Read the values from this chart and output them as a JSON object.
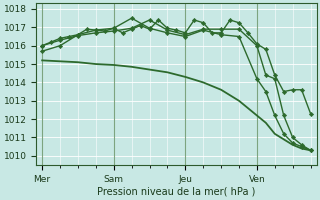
{
  "title": "",
  "xlabel": "Pression niveau de la mer( hPa )",
  "ylabel": "",
  "bg_color": "#c8e8e4",
  "grid_color": "#ffffff",
  "line_color": "#2d6a2d",
  "ylim": [
    1009.5,
    1018.3
  ],
  "yticks": [
    1010,
    1011,
    1012,
    1013,
    1014,
    1015,
    1016,
    1017,
    1018
  ],
  "day_labels": [
    "Mer",
    "Sam",
    "Jeu",
    "Ven"
  ],
  "day_positions": [
    0,
    24,
    48,
    72
  ],
  "vline_positions": [
    0,
    24,
    48,
    72
  ],
  "xlim": [
    -2,
    92
  ],
  "lines": [
    {
      "x": [
        0,
        3,
        6,
        9,
        12,
        15,
        18,
        21,
        24,
        27,
        30,
        33,
        36,
        39,
        42,
        45,
        48,
        51,
        54,
        57,
        60,
        63,
        66,
        69,
        72,
        75,
        78,
        81,
        84,
        87,
        90
      ],
      "y": [
        1016.0,
        1016.2,
        1016.4,
        1016.5,
        1016.6,
        1016.9,
        1016.85,
        1016.8,
        1016.95,
        1016.7,
        1016.9,
        1017.1,
        1016.9,
        1017.4,
        1016.95,
        1016.85,
        1016.7,
        1017.4,
        1017.25,
        1016.7,
        1016.7,
        1017.4,
        1017.25,
        1016.7,
        1016.1,
        1015.8,
        1014.4,
        1013.5,
        1013.6,
        1013.6,
        1012.3
      ],
      "marker": "D",
      "lw": 1.0
    },
    {
      "x": [
        0,
        6,
        12,
        18,
        24,
        30,
        36,
        42,
        48,
        54,
        60,
        66,
        72,
        75,
        78,
        81,
        84,
        87,
        90
      ],
      "y": [
        1016.0,
        1016.3,
        1016.55,
        1016.7,
        1016.8,
        1016.95,
        1017.4,
        1016.85,
        1016.6,
        1016.9,
        1016.9,
        1016.9,
        1016.0,
        1014.4,
        1014.2,
        1012.2,
        1011.0,
        1010.6,
        1010.3
      ],
      "marker": "D",
      "lw": 1.0
    },
    {
      "x": [
        0,
        6,
        12,
        18,
        24,
        30,
        36,
        42,
        48,
        54,
        60,
        66,
        72,
        75,
        78,
        81,
        84,
        87,
        90
      ],
      "y": [
        1015.7,
        1016.0,
        1016.6,
        1016.85,
        1016.95,
        1017.5,
        1016.95,
        1016.7,
        1016.5,
        1016.85,
        1016.6,
        1016.5,
        1014.2,
        1013.5,
        1012.2,
        1011.2,
        1010.7,
        1010.5,
        1010.3
      ],
      "marker": "D",
      "lw": 1.0
    },
    {
      "x": [
        0,
        6,
        12,
        18,
        24,
        30,
        36,
        42,
        48,
        54,
        60,
        66,
        72,
        75,
        78,
        81,
        84,
        87,
        90
      ],
      "y": [
        1015.2,
        1015.15,
        1015.1,
        1015.0,
        1014.95,
        1014.85,
        1014.7,
        1014.55,
        1014.3,
        1014.0,
        1013.6,
        1013.0,
        1012.2,
        1011.8,
        1011.2,
        1010.9,
        1010.6,
        1010.4,
        1010.3
      ],
      "marker": null,
      "lw": 1.3
    }
  ]
}
